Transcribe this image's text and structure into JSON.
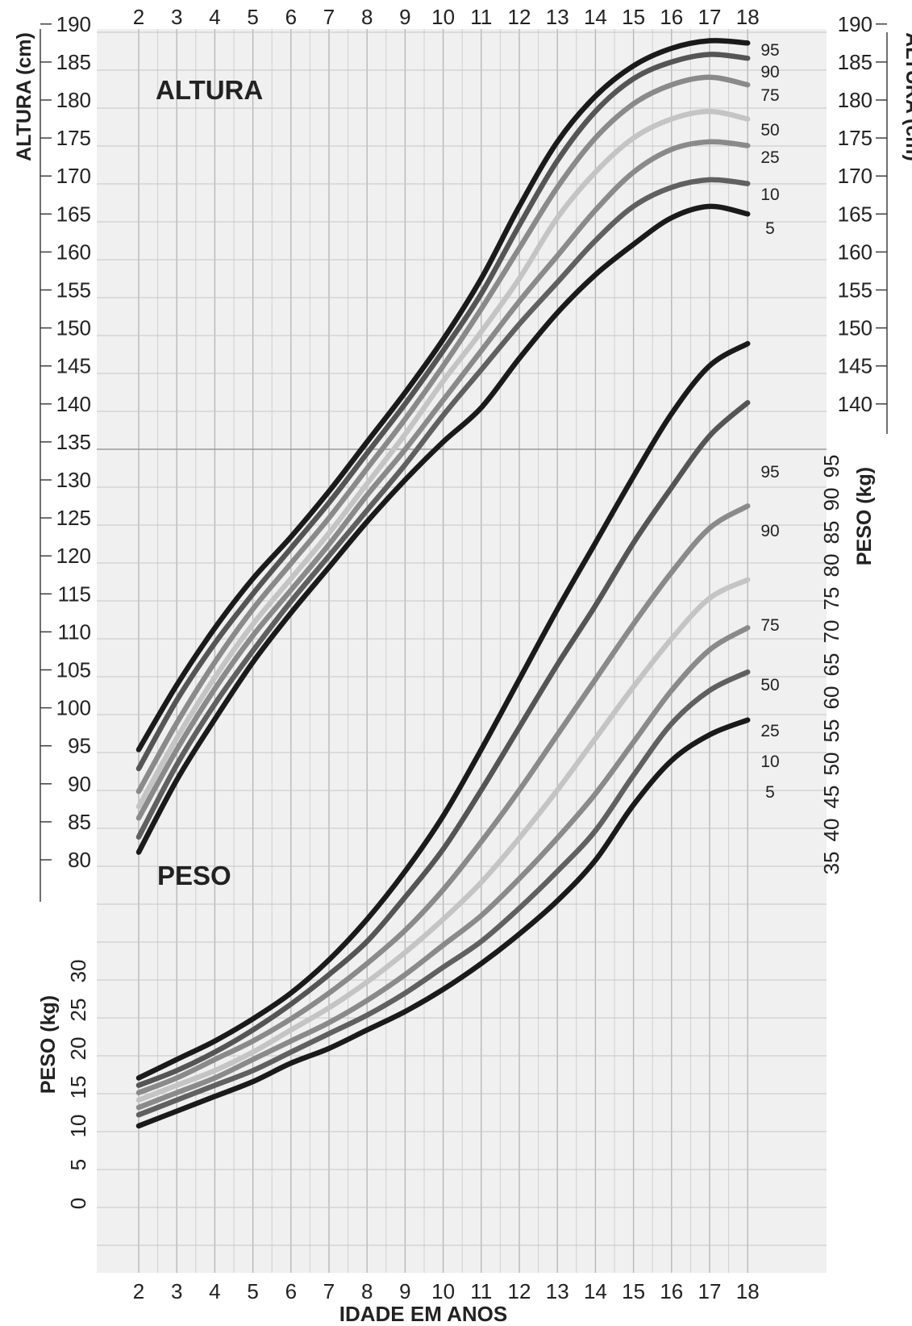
{
  "chart_data": {
    "type": "line",
    "x_label": "IDADE EM ANOS",
    "x_ticks": [
      "2",
      "3",
      "4",
      "5",
      "6",
      "7",
      "8",
      "9",
      "10",
      "11",
      "12",
      "13",
      "14",
      "15",
      "16",
      "17",
      "18"
    ],
    "xlim": [
      2,
      18
    ],
    "panels": [
      {
        "title": "ALTURA",
        "y_label_left": "ALTURA (cm)",
        "y_label_right": "ALTURA (cm)",
        "ylim": [
          80,
          190
        ],
        "y_ticks_left": [
          "80",
          "85",
          "90",
          "95",
          "100",
          "105",
          "110",
          "115",
          "120",
          "125",
          "130",
          "135",
          "140",
          "145",
          "150",
          "155",
          "160",
          "165",
          "170",
          "175",
          "180",
          "185",
          "190"
        ],
        "y_ticks_right": [
          "140",
          "145",
          "150",
          "155",
          "160",
          "165",
          "170",
          "175",
          "180",
          "185",
          "190"
        ],
        "x": [
          2,
          3,
          4,
          5,
          6,
          7,
          8,
          9,
          10,
          11,
          12,
          13,
          14,
          15,
          16,
          17,
          18
        ],
        "series": [
          {
            "name": "95",
            "values": [
              94.5,
              103,
              110.5,
              117,
              122.5,
              128.5,
              135,
              141.5,
              148.5,
              156.5,
              166,
              174.5,
              180.5,
              184.5,
              186.8,
              187.8,
              187.5
            ]
          },
          {
            "name": "90",
            "values": [
              92,
              101,
              108.5,
              115,
              121,
              127,
              133.5,
              140,
              147,
              154.5,
              163.5,
              172,
              178.5,
              182.8,
              185,
              186,
              185.5
            ]
          },
          {
            "name": "75",
            "values": [
              89,
              98,
              106,
              113,
              119,
              125,
              131.5,
              138,
              145,
              152.5,
              160.5,
              168.5,
              175,
              179.5,
              182,
              183,
              182
            ]
          },
          {
            "name": "50",
            "values": [
              87,
              96,
              104,
              111,
              117,
              123,
              129.5,
              136,
              143,
              149.5,
              156.5,
              164.5,
              170.5,
              175,
              177.5,
              178.5,
              177.5
            ]
          },
          {
            "name": "25",
            "values": [
              85.5,
              94.5,
              102.5,
              109.5,
              115.5,
              121.5,
              128,
              134,
              140.5,
              147,
              153.5,
              159.5,
              165.5,
              170.5,
              173.5,
              174.5,
              174
            ]
          },
          {
            "name": "10",
            "values": [
              83,
              92.5,
              100.5,
              107.5,
              114,
              120,
              126,
              132,
              138.5,
              144.5,
              150.5,
              156,
              161.5,
              166,
              168.5,
              169.5,
              169
            ]
          },
          {
            "name": "5",
            "values": [
              81,
              90.5,
              98.5,
              106,
              112.5,
              118.5,
              124.5,
              130,
              135,
              139.5,
              146,
              152,
              157,
              161,
              164.5,
              166,
              165
            ]
          }
        ]
      },
      {
        "title": "PESO",
        "y_label_left": "PESO (kg)",
        "y_label_right": "PESO (kg)",
        "ylim": [
          0,
          95
        ],
        "y_ticks_left": [
          "0",
          "5",
          "10",
          "15",
          "20",
          "25",
          "30"
        ],
        "y_ticks_right": [
          "35",
          "40",
          "45",
          "50",
          "55",
          "60",
          "65",
          "70",
          "75",
          "80",
          "85",
          "90",
          "95"
        ],
        "x": [
          2,
          3,
          4,
          5,
          6,
          7,
          8,
          9,
          10,
          11,
          12,
          13,
          14,
          15,
          16,
          17,
          18
        ],
        "series": [
          {
            "name": "95",
            "values": [
              17,
              19.5,
              22,
              25,
              28.5,
              33,
              38.5,
              45,
              52.5,
              61.5,
              71,
              80.5,
              89.5,
              98.5,
              107,
              113.5,
              116.5
            ]
          },
          {
            "name": "90",
            "values": [
              16,
              18,
              20.5,
              23.5,
              27,
              31,
              35.5,
              41.5,
              48,
              56,
              64.5,
              73,
              81,
              89.5,
              97,
              104,
              108.5
            ]
          },
          {
            "name": "75",
            "values": [
              15,
              17,
              19.5,
              22,
              25,
              28.5,
              32.5,
              37,
              42.5,
              49,
              56,
              63.5,
              71,
              78.5,
              85.5,
              91.5,
              94.5
            ]
          },
          {
            "name": "50",
            "values": [
              14,
              16,
              18,
              20.5,
              23.5,
              26.5,
              30,
              34,
              38.5,
              43.5,
              49.5,
              56,
              63,
              70,
              76.5,
              82,
              84.5
            ]
          },
          {
            "name": "25",
            "values": [
              13,
              15,
              17,
              19.5,
              22,
              24.5,
              27.5,
              31,
              35,
              39,
              44,
              49.5,
              55.5,
              62.5,
              69.5,
              75,
              78
            ]
          },
          {
            "name": "10",
            "values": [
              12,
              14,
              16,
              18,
              20.5,
              23,
              25.5,
              28.5,
              32,
              35.5,
              40,
              45,
              50.5,
              58,
              65,
              69.5,
              72
            ]
          },
          {
            "name": "5",
            "values": [
              10.5,
              12.5,
              14.5,
              16.5,
              19,
              21,
              23.5,
              26,
              29,
              32.5,
              36.5,
              41,
              46.5,
              54,
              60,
              63.5,
              65.5
            ]
          }
        ]
      }
    ]
  }
}
